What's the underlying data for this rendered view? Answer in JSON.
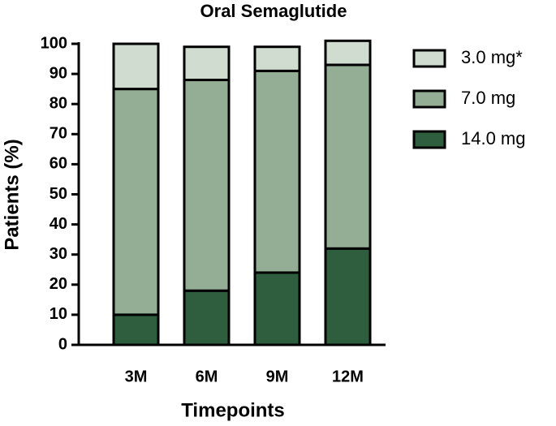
{
  "chart_data": {
    "type": "stacked_bar",
    "title": "Oral Semaglutide",
    "x_label": "Timepoints",
    "y_label": "Patients (%)",
    "categories": [
      "3M",
      "6M",
      "9M",
      "12M"
    ],
    "series": [
      {
        "name": "3.0 mg*",
        "color": "#cfdccf",
        "values": [
          15,
          11,
          8,
          8
        ]
      },
      {
        "name": "7.0 mg",
        "color": "#93ae94",
        "values": [
          75,
          70,
          67,
          61
        ]
      },
      {
        "name": "14.0 mg",
        "color": "#2e5e3e",
        "values": [
          10,
          18,
          24,
          32
        ]
      }
    ],
    "ylim": [
      0,
      100
    ],
    "yticks": [
      0,
      10,
      20,
      30,
      40,
      50,
      60,
      70,
      80,
      90,
      100
    ]
  }
}
